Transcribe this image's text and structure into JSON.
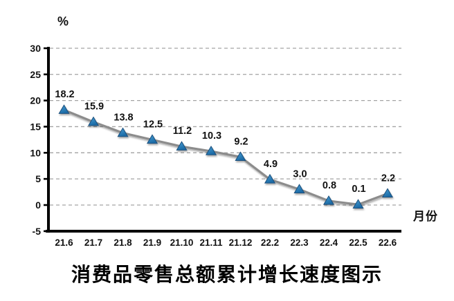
{
  "chart_data": {
    "type": "line",
    "title": "消费品零售总额累计增长速度图示",
    "ylabel": "%",
    "xlabel": "月份",
    "categories": [
      "21.6",
      "21.7",
      "21.8",
      "21.9",
      "21.10",
      "21.11",
      "21.12",
      "22.2",
      "22.3",
      "22.4",
      "22.5",
      "22.6"
    ],
    "values": [
      18.2,
      15.9,
      13.8,
      12.5,
      11.2,
      10.3,
      9.2,
      4.9,
      3.0,
      0.8,
      0.1,
      2.2
    ],
    "point_labels": [
      "18.2",
      "15.9",
      "13.8",
      "12.5",
      "11.2",
      "10.3",
      "9.2",
      "4.9",
      "3.0",
      "0.8",
      "0.1",
      "2.2"
    ],
    "yticks": [
      -5,
      0,
      5,
      10,
      15,
      20,
      25,
      30
    ],
    "ylim": [
      -5,
      30
    ],
    "grid": "horizontal-dashed",
    "legend_position": "none",
    "marker_shape": "triangle",
    "colors": {
      "line": "#8c8c8c",
      "marker_fill_top": "#4aa0d6",
      "marker_fill_bottom": "#1b6aa5",
      "marker_stroke": "#1b4f7c",
      "gridline": "#a3a3a3",
      "axis": "#000000",
      "text": "#111111"
    }
  }
}
